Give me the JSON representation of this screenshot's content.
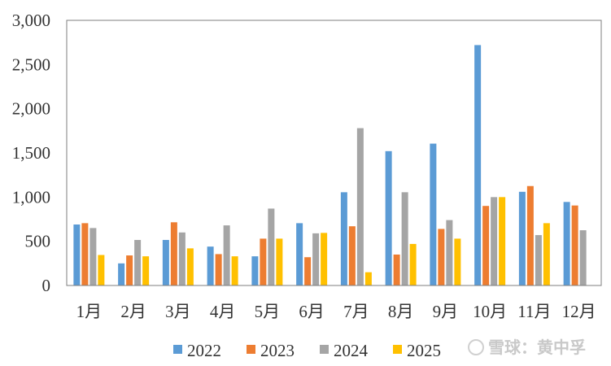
{
  "chart_data": {
    "type": "bar",
    "categories": [
      "1月",
      "2月",
      "3月",
      "4月",
      "5月",
      "6月",
      "7月",
      "8月",
      "9月",
      "10月",
      "11月",
      "12月"
    ],
    "series": [
      {
        "name": "2022",
        "color": "#5b9bd5",
        "values": [
          690,
          250,
          515,
          440,
          330,
          705,
          1055,
          1520,
          1605,
          2720,
          1060,
          945
        ]
      },
      {
        "name": "2023",
        "color": "#ed7d31",
        "values": [
          705,
          340,
          715,
          355,
          530,
          320,
          670,
          350,
          640,
          900,
          1125,
          905
        ]
      },
      {
        "name": "2024",
        "color": "#a5a5a5",
        "values": [
          650,
          515,
          600,
          680,
          870,
          590,
          1780,
          1055,
          740,
          1000,
          570,
          625
        ]
      },
      {
        "name": "2025",
        "color": "#ffc000",
        "values": [
          345,
          330,
          420,
          330,
          530,
          595,
          150,
          470,
          530,
          1000,
          705,
          null
        ]
      }
    ],
    "ylim": [
      0,
      3000
    ],
    "yticks": [
      "0",
      "500",
      "1,000",
      "1,500",
      "2,000",
      "2,500",
      "3,000"
    ],
    "ytick_values": [
      0,
      500,
      1000,
      1500,
      2000,
      2500,
      3000
    ],
    "grid": false,
    "legend_position": "bottom"
  },
  "watermark": {
    "text": "雪球：黄中孚"
  }
}
